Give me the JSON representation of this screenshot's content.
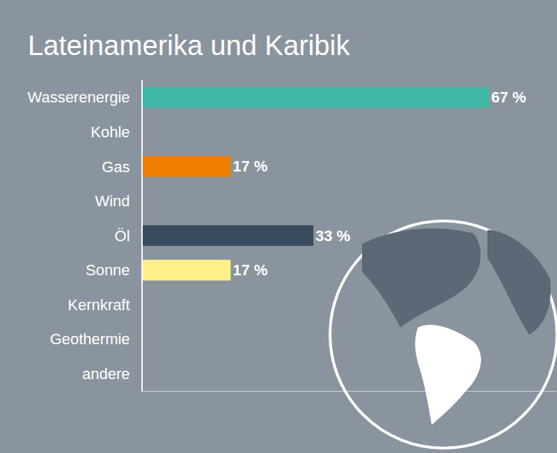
{
  "chart_data": {
    "type": "bar",
    "orientation": "horizontal",
    "title": "Lateinamerika und Karibik",
    "categories": [
      "Wasserenergie",
      "Kohle",
      "Gas",
      "Wind",
      "Öl",
      "Sonne",
      "Kernkraft",
      "Geothermie",
      "andere"
    ],
    "values": [
      67,
      null,
      17,
      null,
      33,
      17,
      null,
      null,
      null
    ],
    "value_labels": [
      "67 %",
      null,
      "17 %",
      null,
      "33 %",
      "17 %",
      null,
      null,
      null
    ],
    "colors": [
      "#3fb8a6",
      null,
      "#ee7d00",
      null,
      "#374a5e",
      "#fff08a",
      null,
      null,
      null
    ],
    "xlim": [
      0,
      80
    ],
    "data_labels": true,
    "tick_labels": "y",
    "grid": false
  }
}
